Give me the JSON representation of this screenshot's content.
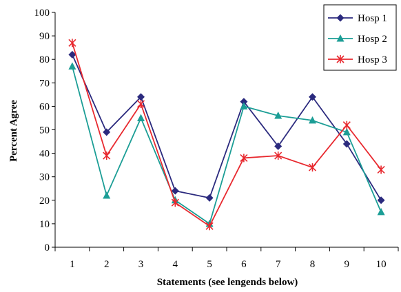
{
  "chart_data": {
    "type": "line",
    "x": [
      1,
      2,
      3,
      4,
      5,
      6,
      7,
      8,
      9,
      10
    ],
    "xlabel": "Statements (see lengends below)",
    "ylabel": "Percent Agree",
    "ylim": [
      0,
      100
    ],
    "yticks": [
      0,
      10,
      20,
      30,
      40,
      50,
      60,
      70,
      80,
      90,
      100
    ],
    "xticks": [
      1,
      2,
      3,
      4,
      5,
      6,
      7,
      8,
      9,
      10
    ],
    "grid": false,
    "legend": "top-right",
    "series": [
      {
        "name": "Hosp 1",
        "color": "#2b2a7e",
        "marker": "diamond",
        "values": [
          82,
          49,
          64,
          24,
          21,
          62,
          43,
          64,
          44,
          20
        ]
      },
      {
        "name": "Hosp 2",
        "color": "#1c9e96",
        "marker": "triangle",
        "values": [
          77,
          22,
          55,
          20,
          10,
          60,
          56,
          54,
          49,
          15
        ]
      },
      {
        "name": "Hosp 3",
        "color": "#e8292f",
        "marker": "asterisk",
        "values": [
          87,
          39,
          61,
          19,
          9,
          38,
          39,
          34,
          52,
          33
        ]
      }
    ]
  }
}
